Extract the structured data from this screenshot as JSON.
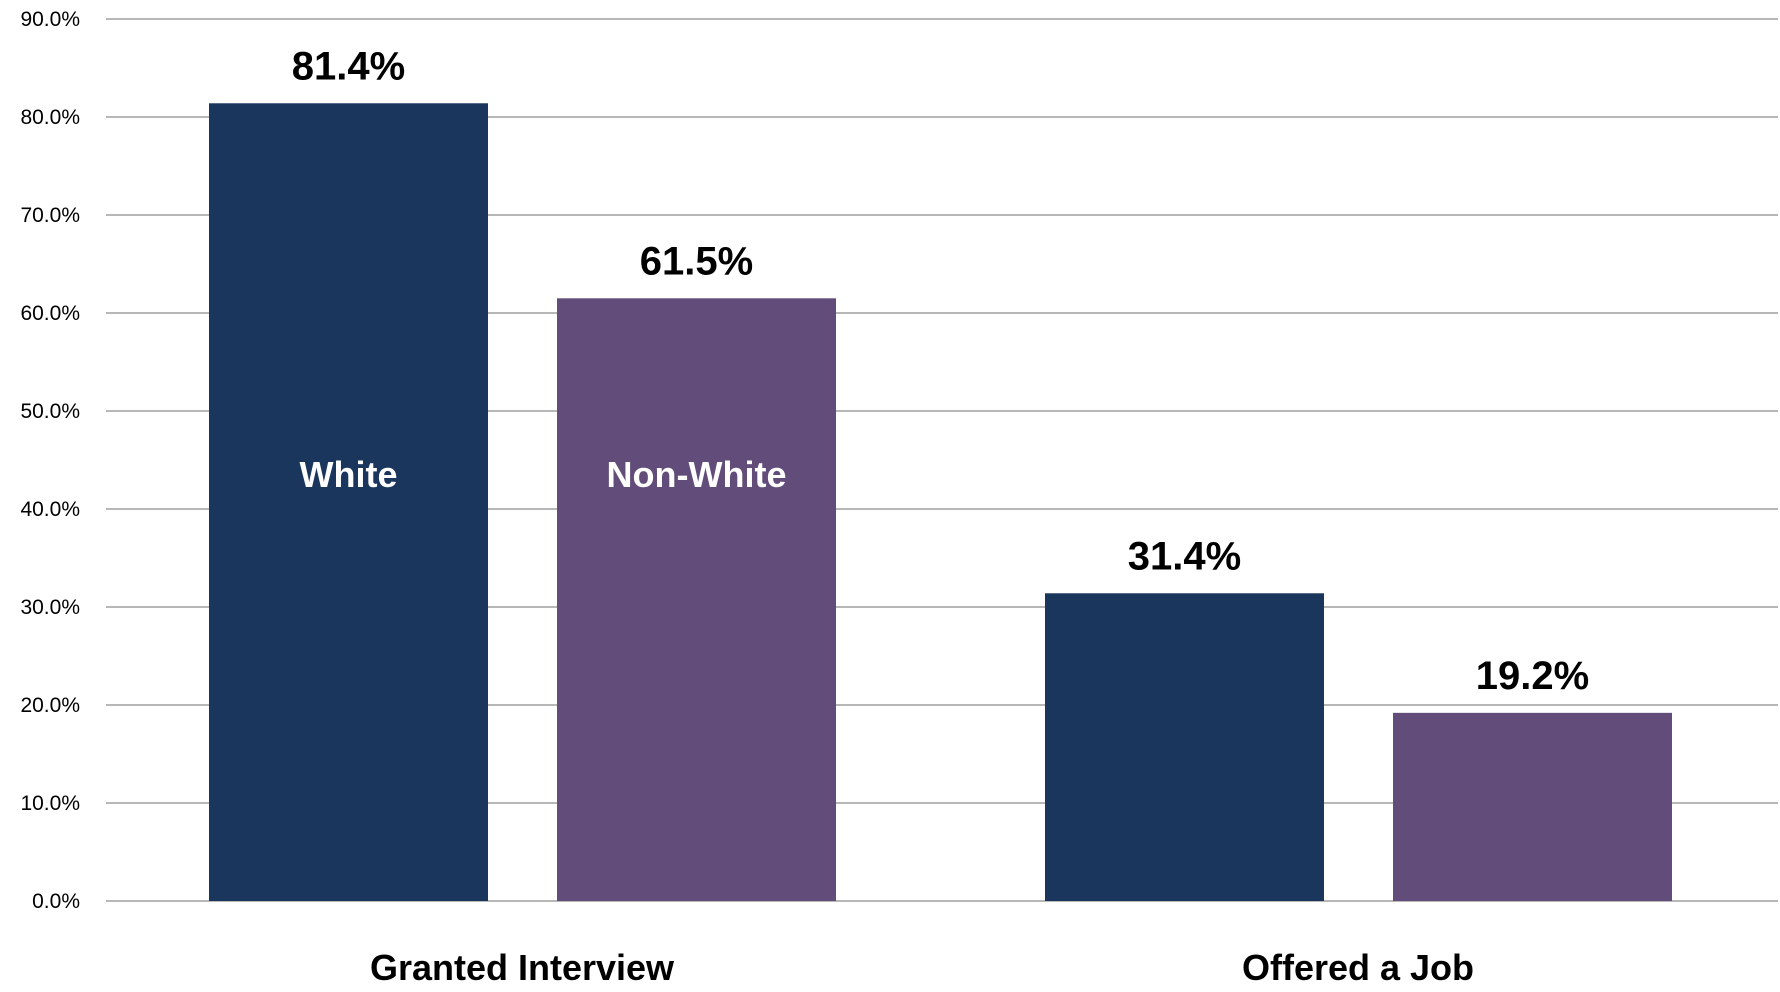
{
  "chart_data": {
    "type": "bar",
    "title": "",
    "xlabel": "",
    "ylabel": "",
    "categories": [
      "Granted Interview",
      "Offered a Job"
    ],
    "series": [
      {
        "name": "White",
        "color": "#1a365d",
        "values": [
          81.4,
          31.4
        ],
        "value_labels": [
          "81.4%",
          "31.4%"
        ]
      },
      {
        "name": "Non-White",
        "color": "#614c7a",
        "values": [
          61.5,
          19.2
        ],
        "value_labels": [
          "61.5%",
          "19.2%"
        ]
      }
    ],
    "ylim": [
      0,
      90
    ],
    "yticks": [
      0,
      10,
      20,
      30,
      40,
      50,
      60,
      70,
      80,
      90
    ],
    "ytick_labels": [
      "0.0%",
      "10.0%",
      "20.0%",
      "30.0%",
      "40.0%",
      "50.0%",
      "60.0%",
      "70.0%",
      "80.0%",
      "90.0%"
    ],
    "grid": true,
    "legend": "series names shown inside first-category bars"
  }
}
